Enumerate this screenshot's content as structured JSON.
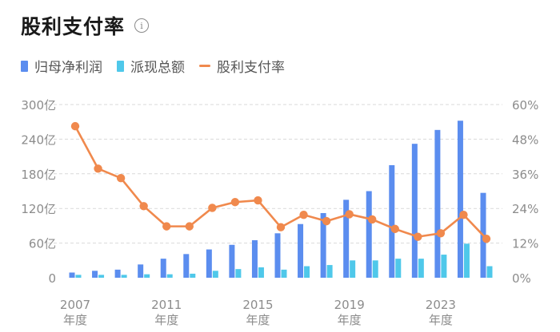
{
  "header": {
    "title": "股利支付率",
    "info_icon": "info-icon"
  },
  "legend": [
    {
      "label": "归母净利润",
      "color": "#5b8def",
      "kind": "bar"
    },
    {
      "label": "派现总额",
      "color": "#4fc8ea",
      "kind": "bar"
    },
    {
      "label": "股利支付率",
      "color": "#f0894d",
      "kind": "line"
    }
  ],
  "chart_data": {
    "type": "bar",
    "title": "股利支付率",
    "x": [
      "2007",
      "2008",
      "2009",
      "2010",
      "2011",
      "2012",
      "2013",
      "2014",
      "2015",
      "2016",
      "2017",
      "2018",
      "2019",
      "2020",
      "2021",
      "2022",
      "2023",
      "2024",
      "2025"
    ],
    "x_tick_labels": [
      {
        "year": "2007",
        "suffix": "年度"
      },
      {
        "year": "2011",
        "suffix": "年度"
      },
      {
        "year": "2015",
        "suffix": "年度"
      },
      {
        "year": "2019",
        "suffix": "年度"
      },
      {
        "year": "2023",
        "suffix": "年度"
      }
    ],
    "left_axis": {
      "ticks": [
        "0",
        "60亿",
        "120亿",
        "180亿",
        "240亿",
        "300亿"
      ],
      "ylim": [
        0,
        300
      ],
      "unit": "亿"
    },
    "right_axis": {
      "ticks": [
        "0%",
        "12%",
        "24%",
        "36%",
        "48%",
        "60%"
      ],
      "ylim": [
        0,
        60
      ],
      "unit": "%"
    },
    "series": [
      {
        "name": "归母净利润",
        "axis": "left",
        "type": "bar",
        "color": "#5b8def",
        "values": [
          9,
          12,
          14,
          23,
          33,
          41,
          49,
          57,
          65,
          77,
          93,
          112,
          135,
          150,
          195,
          232,
          256,
          272,
          147
        ]
      },
      {
        "name": "派现总额",
        "axis": "left",
        "type": "bar",
        "color": "#4fc8ea",
        "values": [
          5,
          5,
          5,
          6,
          6,
          7,
          12,
          15,
          18,
          14,
          20,
          22,
          30,
          30,
          33,
          33,
          40,
          59,
          20
        ]
      },
      {
        "name": "股利支付率",
        "axis": "right",
        "type": "line",
        "color": "#f0894d",
        "values": [
          52.5,
          37.8,
          34.5,
          24.8,
          17.8,
          17.8,
          24.2,
          26.2,
          26.8,
          17.5,
          21.8,
          19.6,
          22.0,
          20.2,
          16.9,
          14.2,
          15.4,
          21.8,
          13.5
        ]
      }
    ],
    "grid": true
  }
}
